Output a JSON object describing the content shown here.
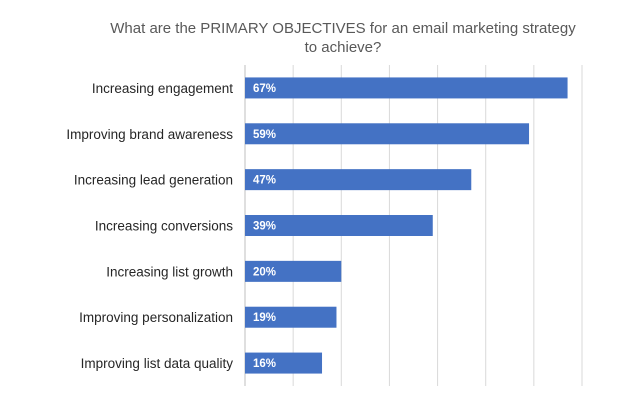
{
  "chart_data": {
    "type": "bar",
    "orientation": "horizontal",
    "title_lines": [
      "What are the PRIMARY OBJECTIVES for an email marketing strategy",
      "to achieve?"
    ],
    "categories": [
      "Increasing engagement",
      "Improving brand awareness",
      "Increasing lead generation",
      "Increasing conversions",
      "Increasing list growth",
      "Improving personalization",
      "Improving list data quality"
    ],
    "values": [
      67,
      59,
      47,
      39,
      20,
      19,
      16
    ],
    "value_labels": [
      "67%",
      "59%",
      "47%",
      "39%",
      "20%",
      "19%",
      "16%"
    ],
    "xlim": [
      0,
      70
    ],
    "grid": true,
    "legend": "none",
    "bar_color": "#4472c4"
  }
}
